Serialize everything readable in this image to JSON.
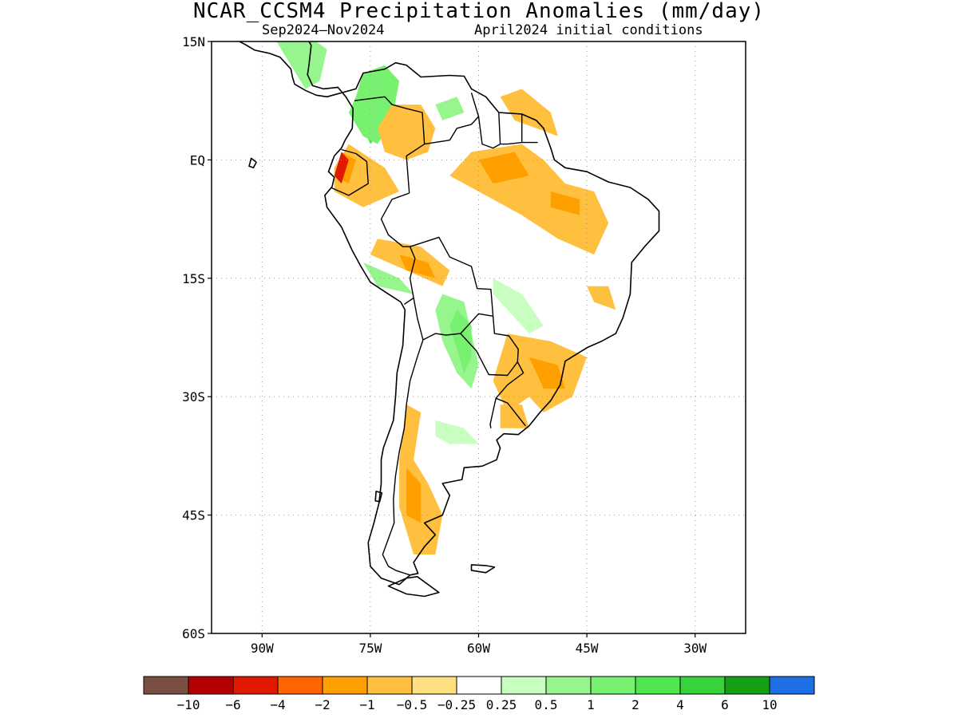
{
  "title": "NCAR_CCSM4 Precipitation Anomalies (mm/day)",
  "subtitle_period": "Sep2024–Nov2024",
  "subtitle_init": "April2024 initial conditions",
  "map": {
    "lon_range": [
      -97,
      -23
    ],
    "lat_range": [
      -60,
      15
    ],
    "lat_ticks": [
      {
        "value": 15,
        "label": "15N"
      },
      {
        "value": 0,
        "label": "EQ"
      },
      {
        "value": -15,
        "label": "15S"
      },
      {
        "value": -30,
        "label": "30S"
      },
      {
        "value": -45,
        "label": "45S"
      },
      {
        "value": -60,
        "label": "60S"
      }
    ],
    "lon_ticks": [
      {
        "value": -90,
        "label": "90W"
      },
      {
        "value": -75,
        "label": "75W"
      },
      {
        "value": -60,
        "label": "60W"
      },
      {
        "value": -45,
        "label": "45W"
      },
      {
        "value": -30,
        "label": "30W"
      }
    ],
    "grid": "dotted",
    "anomaly_regions": [
      {
        "level": 2,
        "polygon": [
          [
            -75,
            10
          ],
          [
            -73,
            11
          ],
          [
            -72,
            8
          ],
          [
            -73,
            4
          ],
          [
            -75,
            2
          ],
          [
            -76,
            4
          ]
        ]
      },
      {
        "level": 1,
        "polygon": [
          [
            -77,
            8
          ],
          [
            -76,
            11
          ],
          [
            -73,
            12
          ],
          [
            -71,
            10
          ],
          [
            -72,
            5
          ],
          [
            -74,
            2
          ],
          [
            -76,
            3
          ],
          [
            -78,
            6
          ]
        ]
      },
      {
        "level": 0.5,
        "polygon": [
          [
            -88,
            15
          ],
          [
            -84,
            16
          ],
          [
            -81,
            14
          ],
          [
            -82,
            10
          ],
          [
            -84,
            9
          ],
          [
            -86,
            12
          ]
        ]
      },
      {
        "level": 0.5,
        "polygon": [
          [
            -66,
            7
          ],
          [
            -63,
            8
          ],
          [
            -62,
            6
          ],
          [
            -65,
            5
          ]
        ]
      },
      {
        "level": -0.5,
        "polygon": [
          [
            -72,
            7
          ],
          [
            -68,
            7
          ],
          [
            -66,
            4
          ],
          [
            -67,
            1
          ],
          [
            -70,
            0
          ],
          [
            -73,
            1
          ],
          [
            -74,
            4
          ]
        ]
      },
      {
        "level": -0.5,
        "polygon": [
          [
            -57,
            8
          ],
          [
            -54,
            9
          ],
          [
            -50,
            6
          ],
          [
            -49,
            3
          ],
          [
            -52,
            4
          ],
          [
            -55,
            5
          ]
        ]
      },
      {
        "level": -0.5,
        "polygon": [
          [
            -61,
            1
          ],
          [
            -54,
            2
          ],
          [
            -51,
            0
          ],
          [
            -48,
            -3
          ],
          [
            -44,
            -4
          ],
          [
            -42,
            -8
          ],
          [
            -44,
            -12
          ],
          [
            -49,
            -10
          ],
          [
            -54,
            -7
          ],
          [
            -58,
            -5
          ],
          [
            -62,
            -3
          ],
          [
            -64,
            -2
          ]
        ]
      },
      {
        "level": -1,
        "polygon": [
          [
            -60,
            0
          ],
          [
            -55,
            1
          ],
          [
            -53,
            -2
          ],
          [
            -58,
            -3
          ]
        ]
      },
      {
        "level": -1,
        "polygon": [
          [
            -50,
            -4
          ],
          [
            -46,
            -5
          ],
          [
            -46,
            -7
          ],
          [
            -50,
            -6
          ]
        ]
      },
      {
        "level": -0.5,
        "polygon": [
          [
            -78,
            2
          ],
          [
            -73,
            -1
          ],
          [
            -71,
            -4
          ],
          [
            -76,
            -6
          ],
          [
            -80,
            -4
          ],
          [
            -80,
            -1
          ]
        ]
      },
      {
        "level": -1,
        "polygon": [
          [
            -79,
            1
          ],
          [
            -77,
            0
          ],
          [
            -78,
            -3
          ],
          [
            -80,
            -2
          ]
        ]
      },
      {
        "level": -4,
        "polygon": [
          [
            -79,
            1
          ],
          [
            -78,
            0
          ],
          [
            -79,
            -3
          ],
          [
            -80,
            -2
          ]
        ]
      },
      {
        "level": -0.5,
        "polygon": [
          [
            -74,
            -10
          ],
          [
            -68,
            -11
          ],
          [
            -64,
            -14
          ],
          [
            -65,
            -16
          ],
          [
            -70,
            -14
          ],
          [
            -75,
            -12
          ]
        ]
      },
      {
        "level": -1,
        "polygon": [
          [
            -71,
            -12
          ],
          [
            -67,
            -13
          ],
          [
            -66,
            -15
          ],
          [
            -70,
            -14
          ]
        ]
      },
      {
        "level": 0.5,
        "polygon": [
          [
            -76,
            -13
          ],
          [
            -71,
            -15
          ],
          [
            -69,
            -17
          ],
          [
            -74,
            -16
          ]
        ]
      },
      {
        "level": 0.5,
        "polygon": [
          [
            -65,
            -17
          ],
          [
            -62,
            -18
          ],
          [
            -61,
            -22
          ],
          [
            -60,
            -26
          ],
          [
            -61,
            -29
          ],
          [
            -63,
            -27
          ],
          [
            -65,
            -23
          ],
          [
            -66,
            -19
          ]
        ]
      },
      {
        "level": 1,
        "polygon": [
          [
            -63,
            -19
          ],
          [
            -61,
            -21
          ],
          [
            -61,
            -25
          ],
          [
            -62,
            -27
          ],
          [
            -63,
            -24
          ],
          [
            -64,
            -21
          ]
        ]
      },
      {
        "level": 0.25,
        "polygon": [
          [
            -58,
            -15
          ],
          [
            -54,
            -17
          ],
          [
            -51,
            -21
          ],
          [
            -53,
            -22
          ],
          [
            -56,
            -19
          ],
          [
            -58,
            -17
          ]
        ]
      },
      {
        "level": -0.5,
        "polygon": [
          [
            -56,
            -22
          ],
          [
            -50,
            -23
          ],
          [
            -45,
            -25
          ],
          [
            -47,
            -30
          ],
          [
            -51,
            -32
          ],
          [
            -53,
            -30
          ],
          [
            -56,
            -32
          ],
          [
            -58,
            -28
          ],
          [
            -57,
            -25
          ]
        ]
      },
      {
        "level": -1,
        "polygon": [
          [
            -53,
            -25
          ],
          [
            -49,
            -26
          ],
          [
            -48,
            -29
          ],
          [
            -51,
            -29
          ]
        ]
      },
      {
        "level": -0.5,
        "polygon": [
          [
            -57,
            -31
          ],
          [
            -54,
            -31
          ],
          [
            -53,
            -34
          ],
          [
            -57,
            -34
          ]
        ]
      },
      {
        "level": 0.25,
        "polygon": [
          [
            -66,
            -33
          ],
          [
            -62,
            -34
          ],
          [
            -60,
            -36
          ],
          [
            -64,
            -36
          ],
          [
            -66,
            -35
          ]
        ]
      },
      {
        "level": -0.5,
        "polygon": [
          [
            -70,
            -31
          ],
          [
            -68,
            -32
          ],
          [
            -69,
            -38
          ],
          [
            -67,
            -41
          ],
          [
            -65,
            -45
          ],
          [
            -66,
            -50
          ],
          [
            -69,
            -50
          ],
          [
            -71,
            -44
          ],
          [
            -71,
            -38
          ]
        ]
      },
      {
        "level": -1,
        "polygon": [
          [
            -70,
            -39
          ],
          [
            -68,
            -41
          ],
          [
            -68,
            -46
          ],
          [
            -70,
            -45
          ]
        ]
      },
      {
        "level": -0.5,
        "polygon": [
          [
            -45,
            -16
          ],
          [
            -42,
            -16
          ],
          [
            -41,
            -19
          ],
          [
            -44,
            -18
          ]
        ]
      }
    ]
  },
  "colorbar": {
    "levels": [
      {
        "label": "-10",
        "color": "#7a4f43"
      },
      {
        "label": "-6",
        "color": "#b40000"
      },
      {
        "label": "-4",
        "color": "#e01a00"
      },
      {
        "label": "-2",
        "color": "#ff6400"
      },
      {
        "label": "-1",
        "color": "#ffa000"
      },
      {
        "label": "-0.5",
        "color": "#ffc040"
      },
      {
        "label": "-0.25",
        "color": "#ffe080"
      },
      {
        "label": "0.25",
        "color": "#ffffff"
      },
      {
        "label": "0.5",
        "color": "#c8ffc0"
      },
      {
        "label": "1",
        "color": "#96f58c"
      },
      {
        "label": "2",
        "color": "#78f070"
      },
      {
        "label": "4",
        "color": "#50e650"
      },
      {
        "label": "6",
        "color": "#37d23c"
      },
      {
        "label": "10",
        "color": "#14a014"
      },
      {
        "label": "",
        "color": "#1e6ee6"
      }
    ],
    "tick_labels": [
      "−10",
      "−6",
      "−4",
      "−2",
      "−1",
      "−0.5",
      "−0.25",
      "0.25",
      "0.5",
      "1",
      "2",
      "4",
      "6",
      "10"
    ]
  },
  "colors": {
    "coastline": "#000000",
    "grid": "#999999"
  }
}
